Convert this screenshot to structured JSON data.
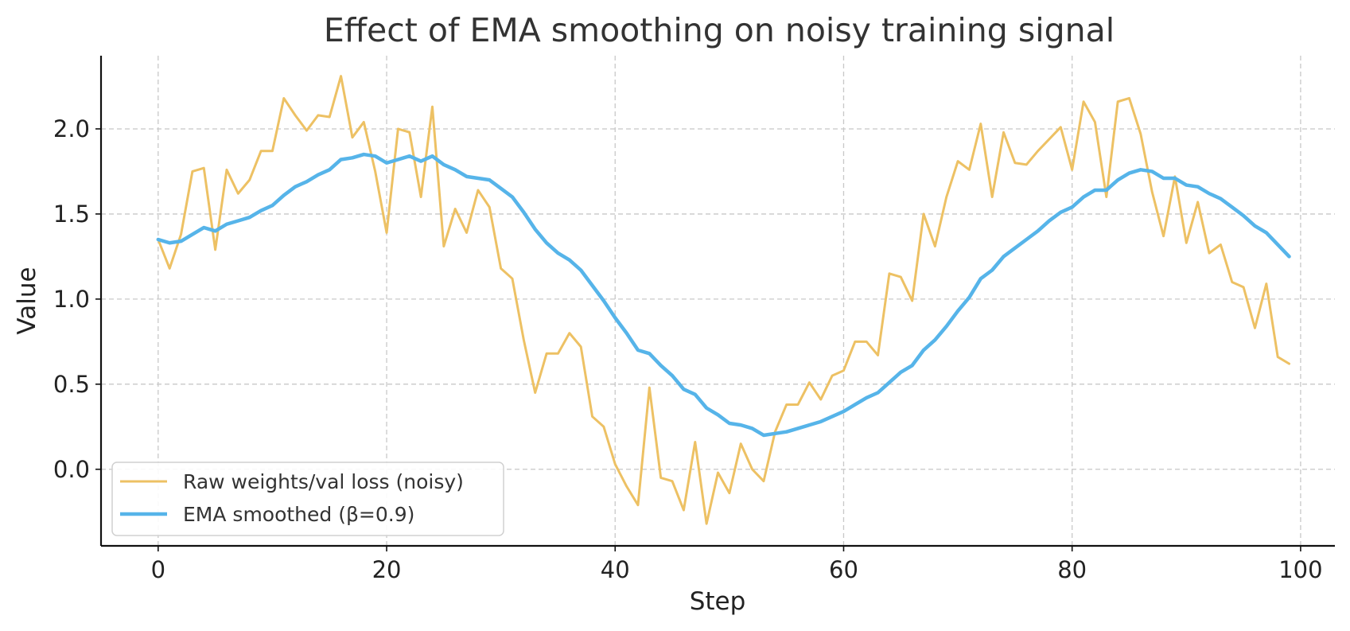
{
  "chart_data": {
    "type": "line",
    "title": "Effect of EMA smoothing on noisy training signal",
    "xlabel": "Step",
    "ylabel": "Value",
    "xlim": [
      -5,
      103
    ],
    "ylim": [
      -0.45,
      2.43
    ],
    "xticks": [
      0,
      20,
      40,
      60,
      80,
      100
    ],
    "xtick_labels": [
      "0",
      "20",
      "40",
      "60",
      "80",
      "100"
    ],
    "yticks": [
      0.0,
      0.5,
      1.0,
      1.5,
      2.0
    ],
    "ytick_labels": [
      "0.0",
      "0.5",
      "1.0",
      "1.5",
      "2.0"
    ],
    "grid": true,
    "legend": {
      "location": "lower-left"
    },
    "x": [
      0,
      1,
      2,
      3,
      4,
      5,
      6,
      7,
      8,
      9,
      10,
      11,
      12,
      13,
      14,
      15,
      16,
      17,
      18,
      19,
      20,
      21,
      22,
      23,
      24,
      25,
      26,
      27,
      28,
      29,
      30,
      31,
      32,
      33,
      34,
      35,
      36,
      37,
      38,
      39,
      40,
      41,
      42,
      43,
      44,
      45,
      46,
      47,
      48,
      49,
      50,
      51,
      52,
      53,
      54,
      55,
      56,
      57,
      58,
      59,
      60,
      61,
      62,
      63,
      64,
      65,
      66,
      67,
      68,
      69,
      70,
      71,
      72,
      73,
      74,
      75,
      76,
      77,
      78,
      79,
      80,
      81,
      82,
      83,
      84,
      85,
      86,
      87,
      88,
      89,
      90,
      91,
      92,
      93,
      94,
      95,
      96,
      97,
      98,
      99
    ],
    "series": [
      {
        "name": "Raw weights/val loss (noisy)",
        "color": "#EDC164",
        "line_width": 3,
        "values": [
          1.35,
          1.18,
          1.38,
          1.75,
          1.77,
          1.29,
          1.76,
          1.62,
          1.7,
          1.87,
          1.87,
          2.18,
          2.08,
          1.99,
          2.08,
          2.07,
          2.31,
          1.95,
          2.04,
          1.75,
          1.39,
          2.0,
          1.98,
          1.6,
          2.13,
          1.31,
          1.53,
          1.39,
          1.64,
          1.54,
          1.18,
          1.12,
          0.76,
          0.45,
          0.68,
          0.68,
          0.8,
          0.72,
          0.31,
          0.25,
          0.03,
          -0.1,
          -0.21,
          0.48,
          -0.05,
          -0.07,
          -0.24,
          0.16,
          -0.32,
          -0.02,
          -0.14,
          0.15,
          0.0,
          -0.07,
          0.22,
          0.38,
          0.38,
          0.51,
          0.41,
          0.55,
          0.58,
          0.75,
          0.75,
          0.67,
          1.15,
          1.13,
          0.99,
          1.5,
          1.31,
          1.6,
          1.81,
          1.76,
          2.03,
          1.6,
          1.98,
          1.8,
          1.79,
          1.87,
          1.94,
          2.01,
          1.76,
          2.16,
          2.04,
          1.6,
          2.16,
          2.18,
          1.97,
          1.63,
          1.37,
          1.72,
          1.33,
          1.57,
          1.27,
          1.32,
          1.1,
          1.07,
          0.83,
          1.09,
          0.66,
          0.62
        ]
      },
      {
        "name": "EMA smoothed (β=0.9)",
        "color": "#56B4E9",
        "line_width": 4.5,
        "values": [
          1.35,
          1.33,
          1.34,
          1.38,
          1.42,
          1.4,
          1.44,
          1.46,
          1.48,
          1.52,
          1.55,
          1.61,
          1.66,
          1.69,
          1.73,
          1.76,
          1.82,
          1.83,
          1.85,
          1.84,
          1.8,
          1.82,
          1.84,
          1.81,
          1.84,
          1.79,
          1.76,
          1.72,
          1.71,
          1.7,
          1.65,
          1.6,
          1.51,
          1.41,
          1.33,
          1.27,
          1.23,
          1.17,
          1.08,
          0.99,
          0.89,
          0.8,
          0.7,
          0.68,
          0.61,
          0.55,
          0.47,
          0.44,
          0.36,
          0.32,
          0.27,
          0.26,
          0.24,
          0.2,
          0.21,
          0.22,
          0.24,
          0.26,
          0.28,
          0.31,
          0.34,
          0.38,
          0.42,
          0.45,
          0.51,
          0.57,
          0.61,
          0.7,
          0.76,
          0.84,
          0.93,
          1.01,
          1.12,
          1.17,
          1.25,
          1.3,
          1.35,
          1.4,
          1.46,
          1.51,
          1.54,
          1.6,
          1.64,
          1.64,
          1.7,
          1.74,
          1.76,
          1.75,
          1.71,
          1.71,
          1.67,
          1.66,
          1.62,
          1.59,
          1.54,
          1.49,
          1.43,
          1.39,
          1.32,
          1.25
        ]
      }
    ]
  }
}
